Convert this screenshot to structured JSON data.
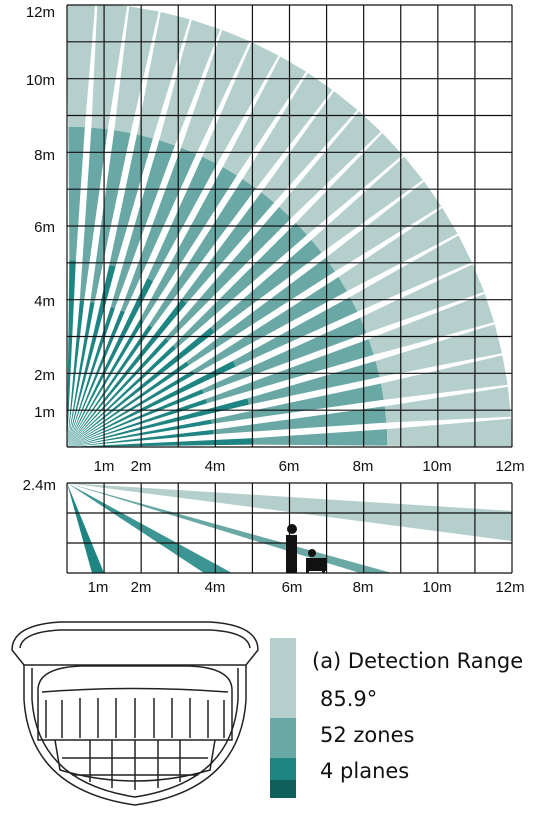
{
  "top_view": {
    "y_labels": [
      "12m",
      "10m",
      "8m",
      "6m",
      "4m",
      "2m",
      "1m"
    ],
    "x_labels": [
      "1m",
      "2m",
      "4m",
      "6m",
      "8m",
      "10m",
      "12m"
    ]
  },
  "side_view": {
    "height_label": "2.4m",
    "x_labels": [
      "1m",
      "2m",
      "4m",
      "6m",
      "8m",
      "10m",
      "12m"
    ]
  },
  "legend": {
    "title": "(a) Detection Range",
    "lines": [
      "85.9°",
      "52 zones",
      "4 planes"
    ]
  }
}
